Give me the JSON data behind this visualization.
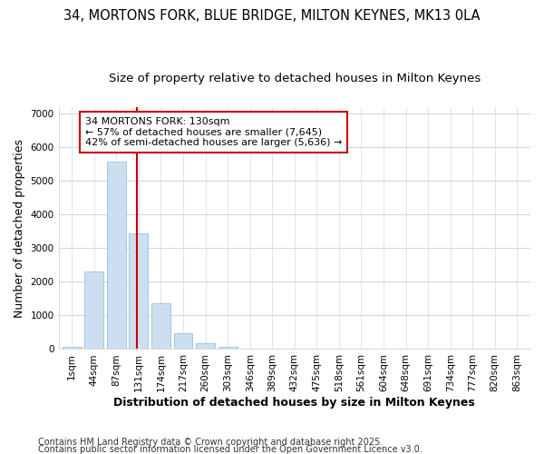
{
  "title_line1": "34, MORTONS FORK, BLUE BRIDGE, MILTON KEYNES, MK13 0LA",
  "title_line2": "Size of property relative to detached houses in Milton Keynes",
  "xlabel": "Distribution of detached houses by size in Milton Keynes",
  "ylabel": "Number of detached properties",
  "categories": [
    "1sqm",
    "44sqm",
    "87sqm",
    "131sqm",
    "174sqm",
    "217sqm",
    "260sqm",
    "303sqm",
    "346sqm",
    "389sqm",
    "432sqm",
    "475sqm",
    "518sqm",
    "561sqm",
    "604sqm",
    "648sqm",
    "691sqm",
    "734sqm",
    "777sqm",
    "820sqm",
    "863sqm"
  ],
  "values": [
    70,
    2300,
    5580,
    3450,
    1370,
    460,
    185,
    70,
    25,
    8,
    3,
    1,
    0,
    0,
    0,
    0,
    0,
    0,
    0,
    0,
    0
  ],
  "bar_color": "#ccdff0",
  "bar_edge_color": "#9bbdd6",
  "vline_x_index": 3,
  "vline_color": "#cc0000",
  "annotation_text": "34 MORTONS FORK: 130sqm\n← 57% of detached houses are smaller (7,645)\n42% of semi-detached houses are larger (5,636) →",
  "annotation_box_color": "#ffffff",
  "annotation_box_edge": "#cc0000",
  "ylim": [
    0,
    7200
  ],
  "yticks": [
    0,
    1000,
    2000,
    3000,
    4000,
    5000,
    6000,
    7000
  ],
  "bg_color": "#ffffff",
  "plot_bg_color": "#ffffff",
  "grid_color": "#d0d8e8",
  "footer_line1": "Contains HM Land Registry data © Crown copyright and database right 2025.",
  "footer_line2": "Contains public sector information licensed under the Open Government Licence v3.0.",
  "title_fontsize": 10.5,
  "subtitle_fontsize": 9.5,
  "axis_label_fontsize": 9,
  "tick_fontsize": 7.5,
  "footer_fontsize": 7,
  "annot_fontsize": 8
}
